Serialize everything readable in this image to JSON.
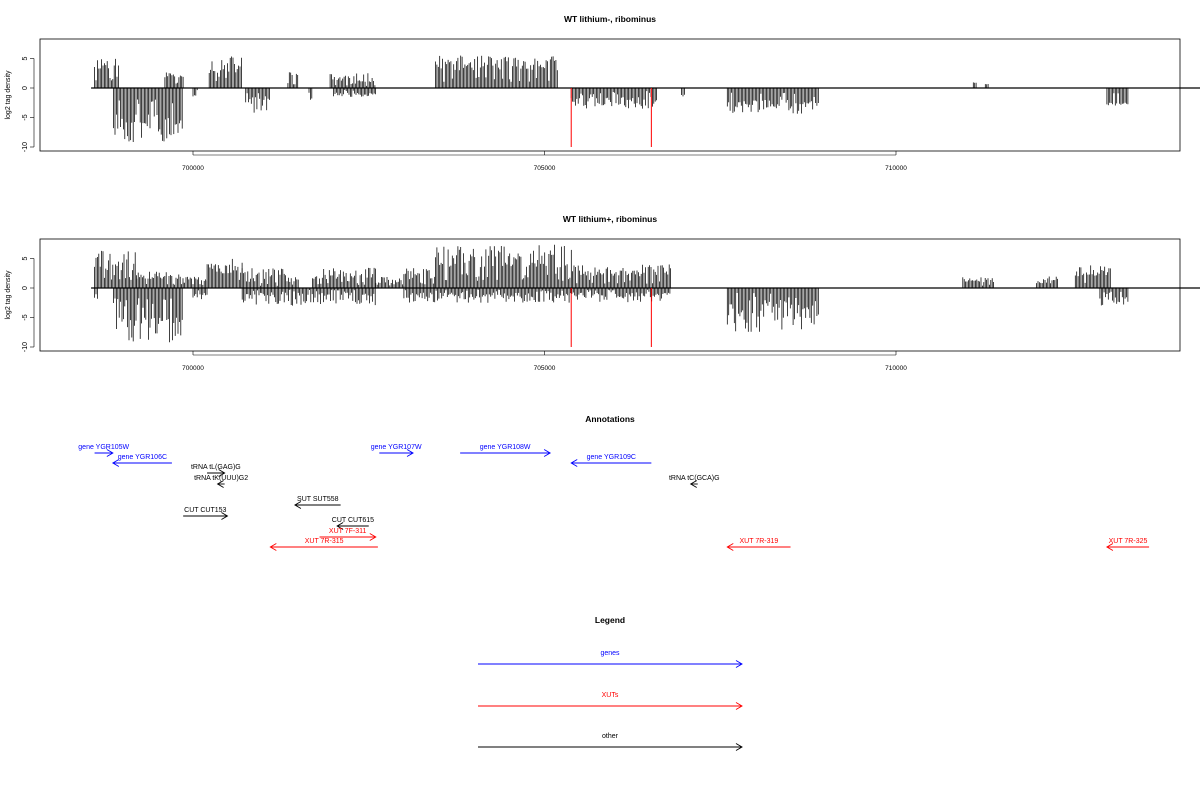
{
  "chart_data": [
    {
      "type": "bar",
      "title": "WT lithium-, ribominus",
      "ylabel": "log2 tag density",
      "xlim": [
        698400,
        713500
      ],
      "ylim": [
        -10,
        7
      ],
      "yticks": [
        5,
        0,
        -5,
        -10
      ],
      "xticks": [
        700000,
        705000,
        710000
      ],
      "baseline_range": [
        698550,
        712900
      ],
      "red_lines": [
        705380,
        706520
      ],
      "pos_blocks": [
        [
          698600,
          698950,
          3.2,
          5.5
        ],
        [
          699600,
          699860,
          1.8,
          2.8
        ],
        [
          700230,
          700700,
          2.5,
          5.5
        ],
        [
          701350,
          701500,
          1.8,
          3.0
        ],
        [
          701950,
          702600,
          1.0,
          2.5
        ],
        [
          703450,
          705200,
          3.0,
          5.5
        ],
        [
          711100,
          711150,
          0.8,
          1.0
        ],
        [
          711270,
          711310,
          0.6,
          0.7
        ]
      ],
      "neg_blocks": [
        [
          698870,
          699860,
          -4.5,
          -9.3
        ],
        [
          700000,
          700060,
          -1.0,
          -1.5
        ],
        [
          700750,
          701100,
          -1.5,
          -4.2
        ],
        [
          701650,
          701700,
          -1.5,
          -2.5
        ],
        [
          702000,
          702600,
          -0.8,
          -1.5
        ],
        [
          705380,
          706600,
          -1.5,
          -3.5
        ],
        [
          706950,
          707000,
          -1.0,
          -1.5
        ],
        [
          707600,
          708900,
          -2.0,
          -4.5
        ],
        [
          713000,
          713300,
          -2.5,
          -3.0
        ]
      ],
      "series": []
    },
    {
      "type": "bar",
      "title": "WT lithium+, ribominus",
      "ylabel": "log2 tag density",
      "xlim": [
        698400,
        713500
      ],
      "ylim": [
        -10,
        7
      ],
      "yticks": [
        5,
        0,
        -5,
        -10
      ],
      "xticks": [
        700000,
        705000,
        710000
      ],
      "baseline_range": [
        698550,
        712900
      ],
      "red_lines": [
        705380,
        706520
      ],
      "pos_blocks": [
        [
          698600,
          699200,
          3.0,
          6.5
        ],
        [
          699200,
          699860,
          1.5,
          2.8
        ],
        [
          699860,
          700200,
          0.6,
          2.0
        ],
        [
          700200,
          700700,
          2.5,
          5.0
        ],
        [
          700700,
          701500,
          1.0,
          3.5
        ],
        [
          701700,
          702600,
          1.5,
          3.5
        ],
        [
          702600,
          703000,
          0.8,
          2.0
        ],
        [
          703000,
          703450,
          1.5,
          3.5
        ],
        [
          703450,
          705400,
          3.5,
          7.5
        ],
        [
          705400,
          706800,
          2.0,
          4.0
        ],
        [
          710950,
          711400,
          1.0,
          2.0
        ],
        [
          712000,
          712300,
          0.8,
          2.0
        ],
        [
          712550,
          713050,
          2.0,
          4.0
        ]
      ],
      "neg_blocks": [
        [
          698600,
          698650,
          -1.0,
          -2.0
        ],
        [
          698870,
          699860,
          -5.0,
          -10.0
        ],
        [
          700000,
          700200,
          -0.8,
          -2.0
        ],
        [
          700700,
          702600,
          -0.8,
          -3.0
        ],
        [
          703000,
          706800,
          -0.8,
          -2.5
        ],
        [
          707600,
          708900,
          -2.0,
          -7.5
        ],
        [
          712900,
          713300,
          -1.5,
          -3.0
        ]
      ],
      "series": []
    }
  ],
  "annotations": {
    "title": "Annotations",
    "items": [
      {
        "label": "gene YGR105W",
        "color": "#0000ff",
        "start": 698600,
        "end": 698860,
        "dir": "right",
        "row": 0
      },
      {
        "label": "gene YGR106C",
        "color": "#0000ff",
        "start": 698860,
        "end": 699700,
        "dir": "left",
        "row": 1
      },
      {
        "label": "tRNA tL(GAG)G",
        "color": "#000000",
        "start": 700200,
        "end": 700450,
        "dir": "right",
        "row": 2
      },
      {
        "label": "tRNA tK(UUU)G2",
        "color": "#000000",
        "start": 700350,
        "end": 700450,
        "dir": "left",
        "row": 3
      },
      {
        "label": "SUT SUT558",
        "color": "#000000",
        "start": 701450,
        "end": 702100,
        "dir": "left",
        "row": 4
      },
      {
        "label": "CUT CUT153",
        "color": "#000000",
        "start": 699860,
        "end": 700490,
        "dir": "right",
        "row": 5
      },
      {
        "label": "CUT CUT615",
        "color": "#000000",
        "start": 702050,
        "end": 702500,
        "dir": "left",
        "row": 6
      },
      {
        "label": "XUT 7F-311",
        "color": "#ff0000",
        "start": 701800,
        "end": 702600,
        "dir": "right",
        "row": 7
      },
      {
        "label": "XUT 7R-315",
        "color": "#ff0000",
        "start": 701100,
        "end": 702630,
        "dir": "left",
        "row": 8
      },
      {
        "label": "gene YGR107W",
        "color": "#0000ff",
        "start": 702650,
        "end": 703130,
        "dir": "right",
        "row": 0
      },
      {
        "label": "gene YGR108W",
        "color": "#0000ff",
        "start": 703800,
        "end": 705080,
        "dir": "right",
        "row": 0
      },
      {
        "label": "gene YGR109C",
        "color": "#0000ff",
        "start": 705380,
        "end": 706520,
        "dir": "left",
        "row": 1
      },
      {
        "label": "tRNA tC(GCA)G",
        "color": "#000000",
        "start": 707080,
        "end": 707180,
        "dir": "left",
        "row": 3
      },
      {
        "label": "XUT 7R-319",
        "color": "#ff0000",
        "start": 707600,
        "end": 708500,
        "dir": "left",
        "row": 8
      },
      {
        "label": "XUT 7R-325",
        "color": "#ff0000",
        "start": 713000,
        "end": 713600,
        "dir": "left",
        "row": 8
      }
    ]
  },
  "legend": {
    "title": "Legend",
    "items": [
      {
        "label": "genes",
        "color": "#0000ff"
      },
      {
        "label": "XUTs",
        "color": "#ff0000"
      },
      {
        "label": "other",
        "color": "#000000"
      }
    ]
  }
}
